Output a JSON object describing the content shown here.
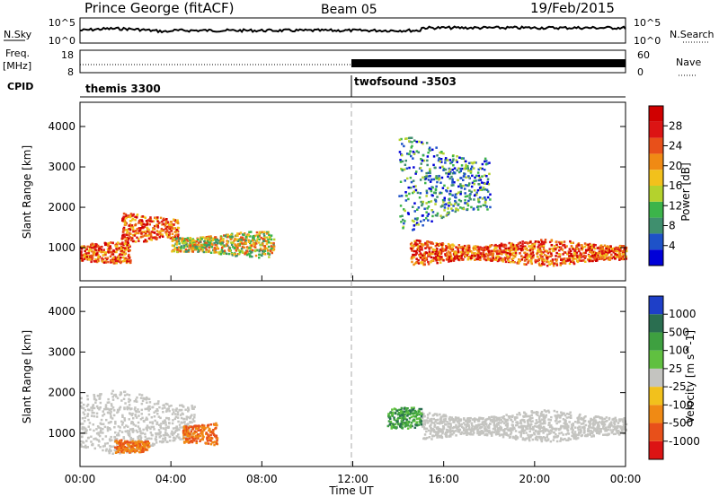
{
  "header": {
    "title": "Prince George (fitACF)",
    "beam": "Beam 05",
    "date": "19/Feb/2015"
  },
  "top_panels": {
    "nsky_label": "N.Sky",
    "nsky_ticks": [
      "10^5",
      "10^0"
    ],
    "nsearch_label": "N.Search",
    "nsearch_ticks": [
      "10^5",
      "10^0"
    ],
    "freq_label_1": "Freq.",
    "freq_label_2": "[MHz]",
    "freq_ticks": [
      "18",
      "8"
    ],
    "nave_label": "Nave",
    "nave_ticks": [
      "60",
      "0"
    ],
    "cpid_label": "CPID",
    "cpid_segments": [
      {
        "name": "themis 3300",
        "start_hour": 0,
        "end_hour": 12
      },
      {
        "name": "twofsound -3503",
        "start_hour": 12,
        "end_hour": 24
      }
    ]
  },
  "time_axis": {
    "label": "Time UT",
    "ticks": [
      "00:00",
      "04:00",
      "08:00",
      "12:00",
      "16:00",
      "20:00",
      "00:00"
    ]
  },
  "chart_data": [
    {
      "type": "heatmap",
      "title": "",
      "ylabel": "Slant Range [km]",
      "xlabel": "Time UT",
      "xlim": [
        0,
        24
      ],
      "ylim": [
        180,
        4600
      ],
      "yticks": [
        "1000",
        "2000",
        "3000",
        "4000"
      ],
      "colorbar": {
        "label": "Power [dB]",
        "ticks": [
          "4",
          "8",
          "12",
          "16",
          "20",
          "24",
          "28"
        ],
        "range": [
          0,
          32
        ],
        "colors": [
          "#0000d8",
          "#1e52c8",
          "#3f8f6e",
          "#3cb44a",
          "#b4d22d",
          "#f2c11c",
          "#f08a14",
          "#e8501a",
          "#dc1414",
          "#d00000"
        ]
      },
      "echo_regions": [
        {
          "t0": 0.0,
          "t1": 2.2,
          "r_center": 900,
          "r_width": 400,
          "level": "high"
        },
        {
          "t0": 1.8,
          "t1": 4.3,
          "r_center": 1500,
          "r_width": 600,
          "level": "high"
        },
        {
          "t0": 4.0,
          "t1": 8.5,
          "r_center": 1100,
          "r_width": 500,
          "level": "mid"
        },
        {
          "t0": 14.5,
          "t1": 24.0,
          "r_center": 900,
          "r_width": 500,
          "level": "high"
        },
        {
          "t0": 14.0,
          "t1": 18.0,
          "r_center": 2600,
          "r_width": 1800,
          "level": "low"
        }
      ]
    },
    {
      "type": "heatmap",
      "title": "",
      "ylabel": "Slant Range [km]",
      "xlabel": "Time UT",
      "xlim": [
        0,
        24
      ],
      "ylim": [
        180,
        4600
      ],
      "yticks": [
        "1000",
        "2000",
        "3000",
        "4000"
      ],
      "colorbar": {
        "label": "Velocity [m s^-1]",
        "ticks": [
          "1000",
          "500",
          "100",
          "25",
          "-25",
          "-100",
          "-500",
          "-1000"
        ],
        "colors": [
          "#1e3fc8",
          "#2a6e50",
          "#3ea040",
          "#60c040",
          "#c4c4c0",
          "#f2c11c",
          "#f08a14",
          "#e8501a",
          "#dc1414"
        ]
      },
      "echo_regions": [
        {
          "t0": 0.0,
          "t1": 5.0,
          "r_center": 1300,
          "r_width": 1200,
          "level": "ground"
        },
        {
          "t0": 1.5,
          "t1": 3.0,
          "r_center": 700,
          "r_width": 250,
          "level": "negative"
        },
        {
          "t0": 4.5,
          "t1": 6.0,
          "r_center": 1000,
          "r_width": 600,
          "level": "negative"
        },
        {
          "t0": 15.0,
          "t1": 24.0,
          "r_center": 1200,
          "r_width": 600,
          "level": "ground"
        },
        {
          "t0": 13.5,
          "t1": 15.0,
          "r_center": 1400,
          "r_width": 400,
          "level": "positive"
        }
      ]
    }
  ]
}
